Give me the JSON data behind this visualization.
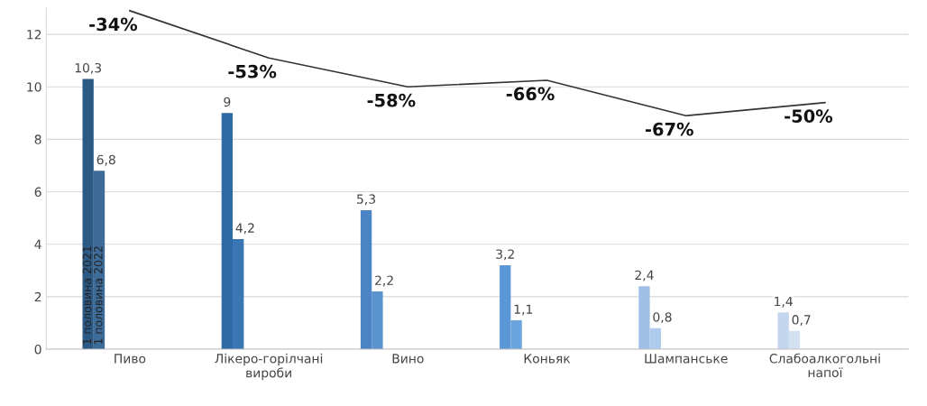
{
  "chart_data": {
    "type": "bar",
    "categories": [
      "Пиво",
      "Лікеро-горілчані\nвироби",
      "Вино",
      "Коньяк",
      "Шампанське",
      "Слабоалкогольні\nнапої"
    ],
    "series": [
      {
        "name": "1 половина 2021",
        "colors": [
          "#2d5a85",
          "#2f6aa6",
          "#4b84c4",
          "#5b97d6",
          "#9fbfe6",
          "#c4d6ee"
        ],
        "values": [
          10.3,
          9,
          5.3,
          3.2,
          2.4,
          1.4
        ],
        "value_labels": [
          "10,3",
          "9",
          "5,3",
          "3,2",
          "2,4",
          "1,4"
        ]
      },
      {
        "name": "1 половина 2022",
        "colors": [
          "#3d6c99",
          "#3a76b4",
          "#5a92cf",
          "#6aa4df",
          "#aecaec",
          "#d2e0f2"
        ],
        "values": [
          6.8,
          4.2,
          2.2,
          1.1,
          0.8,
          0.7
        ],
        "value_labels": [
          "6,8",
          "4,2",
          "2,2",
          "1,1",
          "0,8",
          "0,7"
        ]
      },
      {
        "type": "line",
        "color": "#333333",
        "values": [
          12.9,
          11.1,
          10.0,
          10.25,
          8.9,
          9.4
        ]
      }
    ],
    "annotations": [
      "-34%",
      "-53%",
      "-58%",
      "-66%",
      "-67%",
      "-50%"
    ],
    "ylim": [
      0,
      13
    ],
    "yticks": [
      0,
      2,
      4,
      6,
      8,
      10,
      12
    ],
    "grid": "y",
    "legend": false
  }
}
